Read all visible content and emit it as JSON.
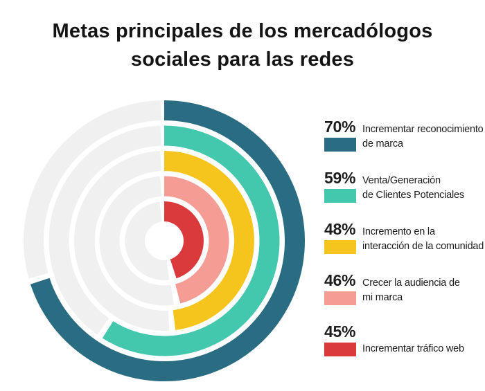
{
  "title": "Metas principales de los mercadólogos\nsociales para las redes",
  "chart_data": {
    "type": "radial_bar",
    "title": "Metas principales de los mercadólogos sociales para las redes",
    "unit": "%",
    "max": 100,
    "start_angle_deg": 0,
    "direction": "clockwise",
    "track_color": "#F0F0F0",
    "background_color": "#FFFFFF",
    "rings_outer_to_inner": [
      {
        "value": 70,
        "pct_label": "70%",
        "label": "Incrementar reconocimiento\nde marca",
        "color": "#2A6D83"
      },
      {
        "value": 59,
        "pct_label": "59%",
        "label": "Venta/Generación\nde Clientes Potenciales",
        "color": "#43C8AD"
      },
      {
        "value": 48,
        "pct_label": "48%",
        "label": "Incremento en la\ninteracción de la comunidad",
        "color": "#F5C51D"
      },
      {
        "value": 46,
        "pct_label": "46%",
        "label": "Crecer la audiencia de\nmi marca",
        "color": "#F59C95"
      },
      {
        "value": 45,
        "pct_label": "45%",
        "label": "Incrementar tráfico web",
        "color": "#DB3A3C"
      }
    ]
  }
}
